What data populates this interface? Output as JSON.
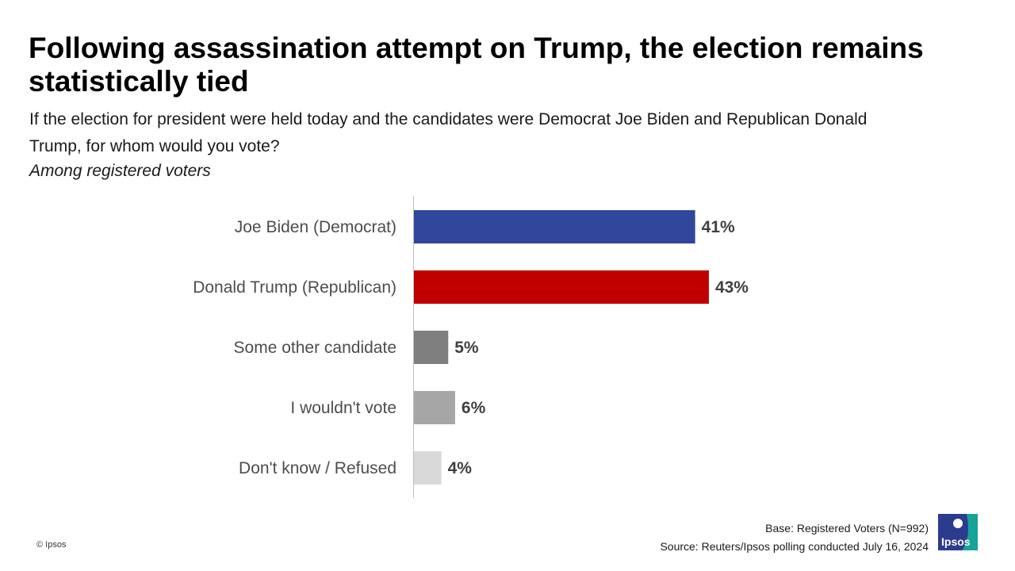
{
  "title": "Following assassination attempt on Trump, the election remains statistically tied",
  "subtitle": "If the election for president were held today and the candidates were Democrat Joe Biden and Republican Donald Trump, for whom would you vote?",
  "base_note": "Among registered voters",
  "chart_data": {
    "type": "bar",
    "orientation": "horizontal",
    "categories": [
      "Joe Biden (Democrat)",
      "Donald Trump (Republican)",
      "Some other candidate",
      "I wouldn't vote",
      "Don't know / Refused"
    ],
    "values": [
      41,
      43,
      5,
      6,
      4
    ],
    "value_labels": [
      "41%",
      "43%",
      "5%",
      "6%",
      "4%"
    ],
    "colors": [
      "#30479c",
      "#c00000",
      "#7f7f7f",
      "#a6a6a6",
      "#d9d9d9"
    ],
    "unit": "%",
    "xlim": [
      0,
      100
    ],
    "grid": false
  },
  "footer": {
    "base": "Base: Registered Voters (N=992)",
    "source": "Source: Reuters/Ipsos polling conducted July 16, 2024"
  },
  "copyright": "© Ipsos",
  "logo": {
    "text": "Ipsos",
    "color_primary": "#2b3c8e",
    "color_secondary": "#17a398"
  }
}
